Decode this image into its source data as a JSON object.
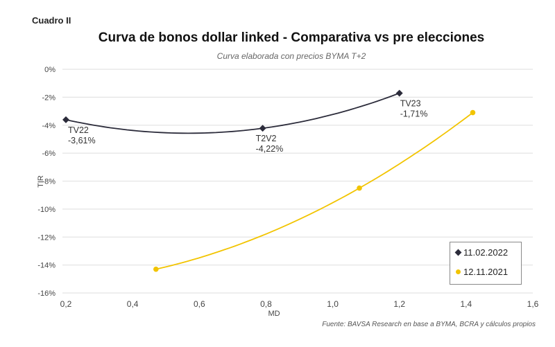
{
  "header": {
    "label": "Cuadro II",
    "title": "Curva de bonos dollar linked - Comparativa vs pre elecciones",
    "subtitle": "Curva elaborada con precios BYMA T+2"
  },
  "footer": {
    "source": "Fuente: BAVSA Research en base a BYMA, BCRA y cálculos propios"
  },
  "chart_data": {
    "type": "scatter",
    "title": "Curva de bonos dollar linked - Comparativa vs pre elecciones",
    "subtitle": "Curva elaborada con precios BYMA T+2",
    "xlabel": "MD",
    "ylabel": "TIR",
    "xlim": [
      0.2,
      1.6
    ],
    "ylim": [
      -16,
      0
    ],
    "x_ticks": [
      "0,2",
      "0,4",
      "0,6",
      "0,8",
      "1,0",
      "1,2",
      "1,4",
      "1,6"
    ],
    "y_ticks": [
      "0%",
      "-2%",
      "-4%",
      "-6%",
      "-8%",
      "-10%",
      "-12%",
      "-14%",
      "-16%"
    ],
    "grid": "horizontal",
    "legend_position": "bottom-right",
    "series": [
      {
        "name": "11.02.2022",
        "color": "#2b2b3a",
        "marker": "diamond",
        "points": [
          {
            "x": 0.2,
            "y": -3.61,
            "label": "TV22",
            "value_label": "-3,61%"
          },
          {
            "x": 0.79,
            "y": -4.22,
            "label": "T2V2",
            "value_label": "-4,22%"
          },
          {
            "x": 1.2,
            "y": -1.71,
            "label": "TV23",
            "value_label": "-1,71%"
          }
        ]
      },
      {
        "name": "12.11.2021",
        "color": "#f2c400",
        "marker": "circle",
        "points": [
          {
            "x": 0.47,
            "y": -14.3
          },
          {
            "x": 1.08,
            "y": -8.5
          },
          {
            "x": 1.42,
            "y": -3.1
          }
        ]
      }
    ]
  }
}
